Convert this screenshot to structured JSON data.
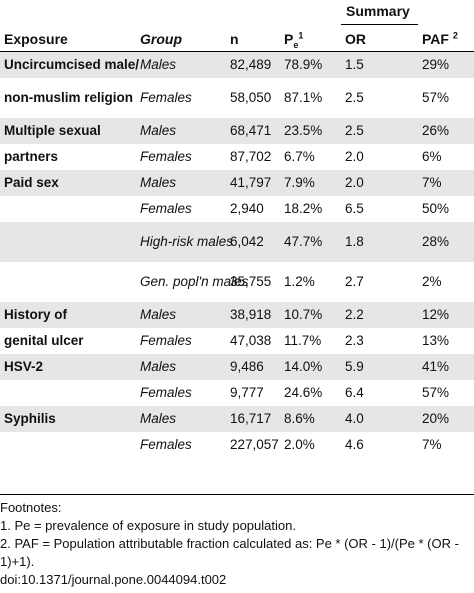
{
  "table": {
    "summary_label": "Summary",
    "headers": {
      "exposure": "Exposure",
      "group": "Group",
      "n": "n",
      "pe_main": "P",
      "pe_sub": "e",
      "pe_sup": "1",
      "or": "OR",
      "paf": "PAF",
      "paf_sup": "2"
    },
    "rows": [
      {
        "exposure": "Uncircumcised male/",
        "group": "Males",
        "n": "82,489",
        "pe": "78.9%",
        "or": "1.5",
        "paf": "29%"
      },
      {
        "exposure": "non-muslim religion",
        "group": "Females",
        "n": "58,050",
        "pe": "87.1%",
        "or": "2.5",
        "paf": "57%"
      },
      {
        "exposure": "Multiple sexual",
        "group": "Males",
        "n": "68,471",
        "pe": "23.5%",
        "or": "2.5",
        "paf": "26%"
      },
      {
        "exposure": "partners",
        "group": "Females",
        "n": "87,702",
        "pe": "6.7%",
        "or": "2.0",
        "paf": "6%"
      },
      {
        "exposure": "Paid sex",
        "group": "Males",
        "n": "41,797",
        "pe": "7.9%",
        "or": "2.0",
        "paf": "7%"
      },
      {
        "exposure": "",
        "group": "Females",
        "n": "2,940",
        "pe": "18.2%",
        "or": "6.5",
        "paf": "50%"
      },
      {
        "exposure": "",
        "group": "High-risk males",
        "n": "6,042",
        "pe": "47.7%",
        "or": "1.8",
        "paf": "28%"
      },
      {
        "exposure": "",
        "group": "Gen. popl'n males",
        "n": "35,755",
        "pe": "1.2%",
        "or": "2.7",
        "paf": "2%"
      },
      {
        "exposure": "History of",
        "group": "Males",
        "n": "38,918",
        "pe": "10.7%",
        "or": "2.2",
        "paf": "12%"
      },
      {
        "exposure": "genital ulcer",
        "group": "Females",
        "n": "47,038",
        "pe": "11.7%",
        "or": "2.3",
        "paf": "13%"
      },
      {
        "exposure": "HSV-2",
        "group": "Males",
        "n": "9,486",
        "pe": "14.0%",
        "or": "5.9",
        "paf": "41%"
      },
      {
        "exposure": "",
        "group": "Females",
        "n": "9,777",
        "pe": "24.6%",
        "or": "6.4",
        "paf": "57%"
      },
      {
        "exposure": "Syphilis",
        "group": "Males",
        "n": "16,717",
        "pe": "8.6%",
        "or": "4.0",
        "paf": "20%"
      },
      {
        "exposure": "",
        "group": "Females",
        "n": "227,057",
        "pe": "2.0%",
        "or": "4.6",
        "paf": "7%"
      }
    ]
  },
  "footnotes": {
    "title": "Footnotes:",
    "note1": "1. Pe = prevalence of exposure in study population.",
    "note2": "2. PAF = Population attributable fraction calculated as: Pe * (OR - 1)/(Pe * (OR - 1)+1).",
    "doi": "doi:10.1371/journal.pone.0044094.t002"
  }
}
